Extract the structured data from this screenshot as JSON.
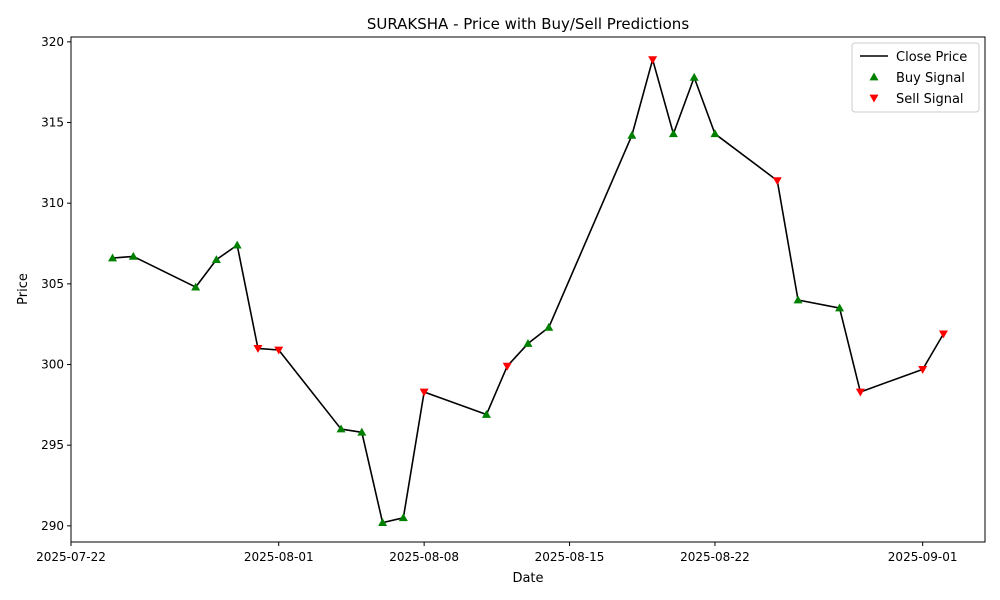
{
  "chart_data": {
    "type": "line",
    "title": "SURAKSHA - Price with Buy/Sell Predictions",
    "xlabel": "Date",
    "ylabel": "Price",
    "xlim": [
      "2025-07-22",
      "2025-09-04"
    ],
    "ylim": [
      289,
      320.3
    ],
    "x_ticks": [
      "2025-07-22",
      "2025-08-01",
      "2025-08-08",
      "2025-08-15",
      "2025-08-22",
      "2025-09-01"
    ],
    "y_ticks": [
      290,
      295,
      300,
      305,
      310,
      315,
      320
    ],
    "legend_position": "top-right",
    "series": [
      {
        "name": "Close Price",
        "color": "#000000",
        "points": [
          {
            "date": "2025-07-24",
            "price": 306.6
          },
          {
            "date": "2025-07-25",
            "price": 306.7
          },
          {
            "date": "2025-07-28",
            "price": 304.8
          },
          {
            "date": "2025-07-29",
            "price": 306.5
          },
          {
            "date": "2025-07-30",
            "price": 307.4
          },
          {
            "date": "2025-07-31",
            "price": 301.0
          },
          {
            "date": "2025-08-01",
            "price": 300.9
          },
          {
            "date": "2025-08-04",
            "price": 296.0
          },
          {
            "date": "2025-08-05",
            "price": 295.8
          },
          {
            "date": "2025-08-06",
            "price": 290.2
          },
          {
            "date": "2025-08-07",
            "price": 290.5
          },
          {
            "date": "2025-08-08",
            "price": 298.3
          },
          {
            "date": "2025-08-11",
            "price": 296.9
          },
          {
            "date": "2025-08-12",
            "price": 299.9
          },
          {
            "date": "2025-08-13",
            "price": 301.3
          },
          {
            "date": "2025-08-14",
            "price": 302.3
          },
          {
            "date": "2025-08-18",
            "price": 314.2
          },
          {
            "date": "2025-08-19",
            "price": 318.9
          },
          {
            "date": "2025-08-20",
            "price": 314.3
          },
          {
            "date": "2025-08-21",
            "price": 317.8
          },
          {
            "date": "2025-08-22",
            "price": 314.3
          },
          {
            "date": "2025-08-25",
            "price": 311.4
          },
          {
            "date": "2025-08-26",
            "price": 304.0
          },
          {
            "date": "2025-08-28",
            "price": 303.5
          },
          {
            "date": "2025-08-29",
            "price": 298.3
          },
          {
            "date": "2025-09-01",
            "price": 299.7
          },
          {
            "date": "2025-09-02",
            "price": 301.9
          }
        ]
      },
      {
        "name": "Buy Signal",
        "color": "#008000",
        "marker": "triangle-up",
        "points": [
          {
            "date": "2025-07-24",
            "price": 306.6
          },
          {
            "date": "2025-07-25",
            "price": 306.7
          },
          {
            "date": "2025-07-28",
            "price": 304.8
          },
          {
            "date": "2025-07-29",
            "price": 306.5
          },
          {
            "date": "2025-07-30",
            "price": 307.4
          },
          {
            "date": "2025-08-04",
            "price": 296.0
          },
          {
            "date": "2025-08-05",
            "price": 295.8
          },
          {
            "date": "2025-08-06",
            "price": 290.2
          },
          {
            "date": "2025-08-07",
            "price": 290.5
          },
          {
            "date": "2025-08-11",
            "price": 296.9
          },
          {
            "date": "2025-08-13",
            "price": 301.3
          },
          {
            "date": "2025-08-14",
            "price": 302.3
          },
          {
            "date": "2025-08-18",
            "price": 314.2
          },
          {
            "date": "2025-08-20",
            "price": 314.3
          },
          {
            "date": "2025-08-21",
            "price": 317.8
          },
          {
            "date": "2025-08-22",
            "price": 314.3
          },
          {
            "date": "2025-08-26",
            "price": 304.0
          },
          {
            "date": "2025-08-28",
            "price": 303.5
          }
        ]
      },
      {
        "name": "Sell Signal",
        "color": "#ff0000",
        "marker": "triangle-down",
        "points": [
          {
            "date": "2025-07-31",
            "price": 301.0
          },
          {
            "date": "2025-08-01",
            "price": 300.9
          },
          {
            "date": "2025-08-08",
            "price": 298.3
          },
          {
            "date": "2025-08-12",
            "price": 299.9
          },
          {
            "date": "2025-08-19",
            "price": 318.9
          },
          {
            "date": "2025-08-25",
            "price": 311.4
          },
          {
            "date": "2025-08-29",
            "price": 298.3
          },
          {
            "date": "2025-09-01",
            "price": 299.7
          },
          {
            "date": "2025-09-02",
            "price": 301.9
          }
        ]
      }
    ]
  }
}
